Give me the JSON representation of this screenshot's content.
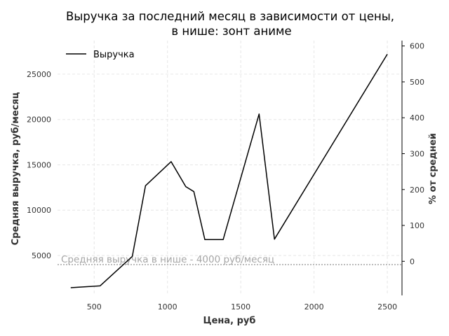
{
  "chart_data": {
    "type": "line",
    "title_line1": "Выручка за последний месяц в зависимости от цены,",
    "title_line2": "в нише: зонт аниме",
    "xlabel": "Цена, руб",
    "ylabel": "Средняя выручка, руб/месяц",
    "ylabel_right": "% от средней",
    "xlim": [
      250,
      2600
    ],
    "ylim": [
      600,
      28700
    ],
    "ylim_right": [
      -95,
      615
    ],
    "xticks": [
      500,
      1000,
      1500,
      2000,
      2500
    ],
    "yticks": [
      5000,
      10000,
      15000,
      20000,
      25000
    ],
    "yticks_right": [
      0,
      100,
      200,
      300,
      400,
      500,
      600
    ],
    "grid": true,
    "legend_position": "top-left",
    "series": [
      {
        "name": "Выручка",
        "color": "#000000",
        "x": [
          340,
          540,
          760,
          850,
          1025,
          1125,
          1180,
          1255,
          1380,
          1395,
          1625,
          1730,
          2500
        ],
        "y": [
          1450,
          1650,
          4900,
          12700,
          15350,
          12600,
          12050,
          6750,
          6750,
          7600,
          20600,
          6800,
          27200
        ]
      }
    ],
    "reference_line": {
      "value": 4000,
      "label": "Средняя выручка в нише - 4000 руб/месяц",
      "color": "#a6a6a6"
    }
  }
}
